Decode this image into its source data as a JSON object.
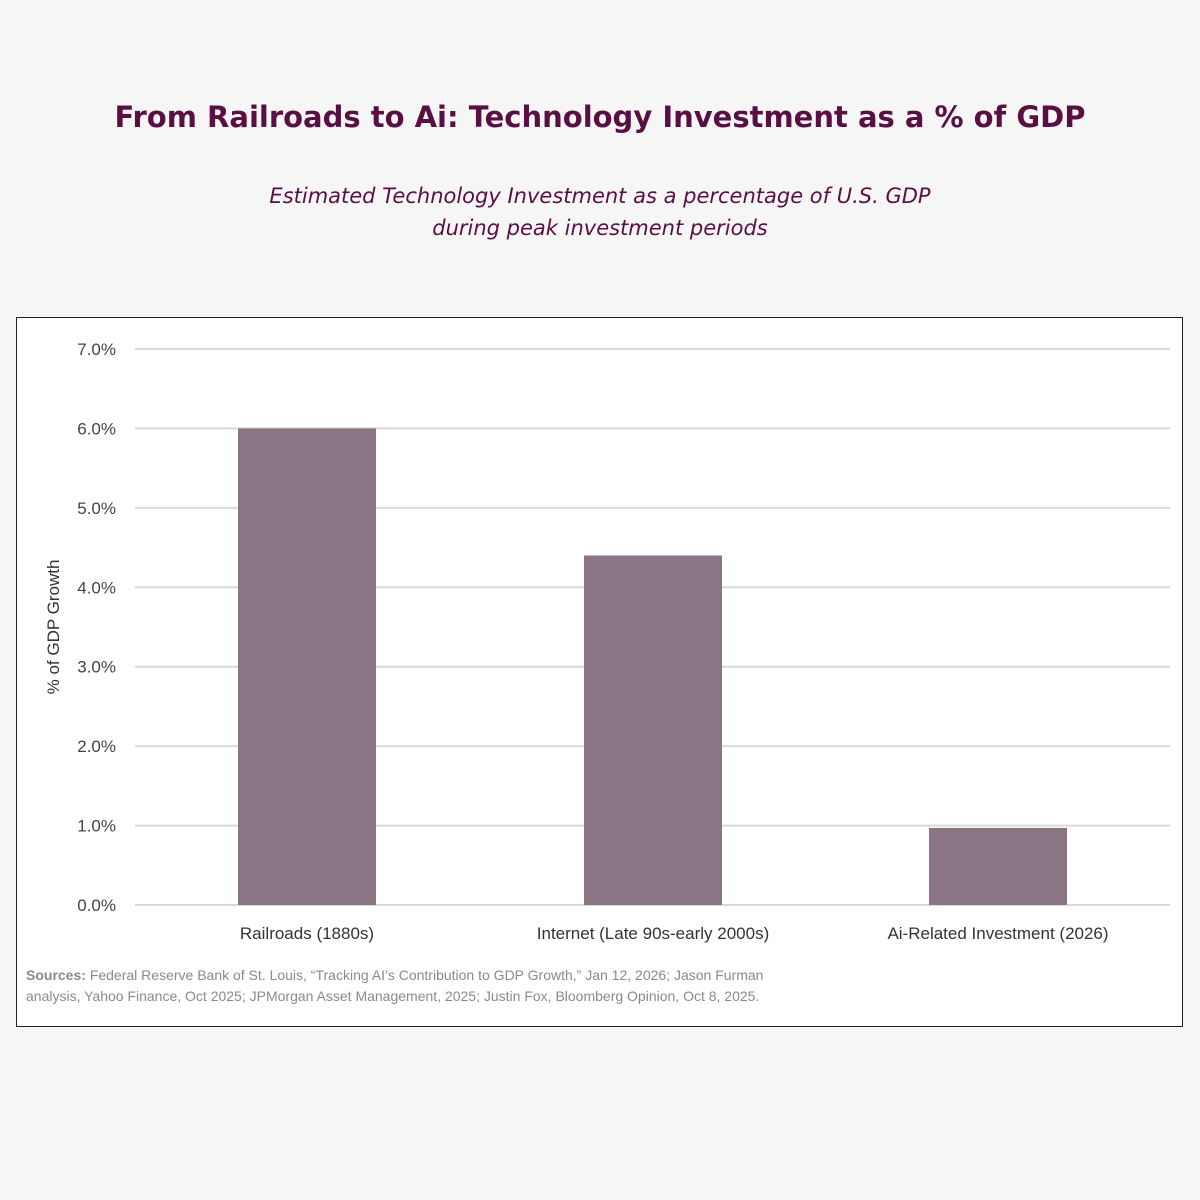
{
  "chart_data": {
    "type": "bar",
    "title": "From Railroads to Ai: Technology Investment as a % of GDP",
    "subtitle": [
      "Estimated Technology Investment as a percentage of U.S. GDP",
      "during peak investment periods"
    ],
    "ylabel": "% of GDP Growth",
    "xlabel": "",
    "categories": [
      "Railroads (1880s)",
      "Internet (Late 90s-early 2000s)",
      "Ai-Related Investment (2026)"
    ],
    "values": [
      6.0,
      4.4,
      0.97
    ],
    "ylim": [
      0,
      7
    ],
    "yticks": [
      "0.0%",
      "1.0%",
      "2.0%",
      "3.0%",
      "4.0%",
      "5.0%",
      "6.0%",
      "7.0%"
    ],
    "grid": true,
    "bar_color": "#8b7483",
    "source_label": "Sources:",
    "source": "Federal Reserve Bank of St. Louis, “Tracking AI’s Contribution to GDP Growth,” Jan 12, 2026; Jason Furman analysis, Yahoo Finance, Oct 2025; JPMorgan Asset Management, 2025; Justin Fox, Bloomberg Opinion, Oct 8, 2025."
  }
}
